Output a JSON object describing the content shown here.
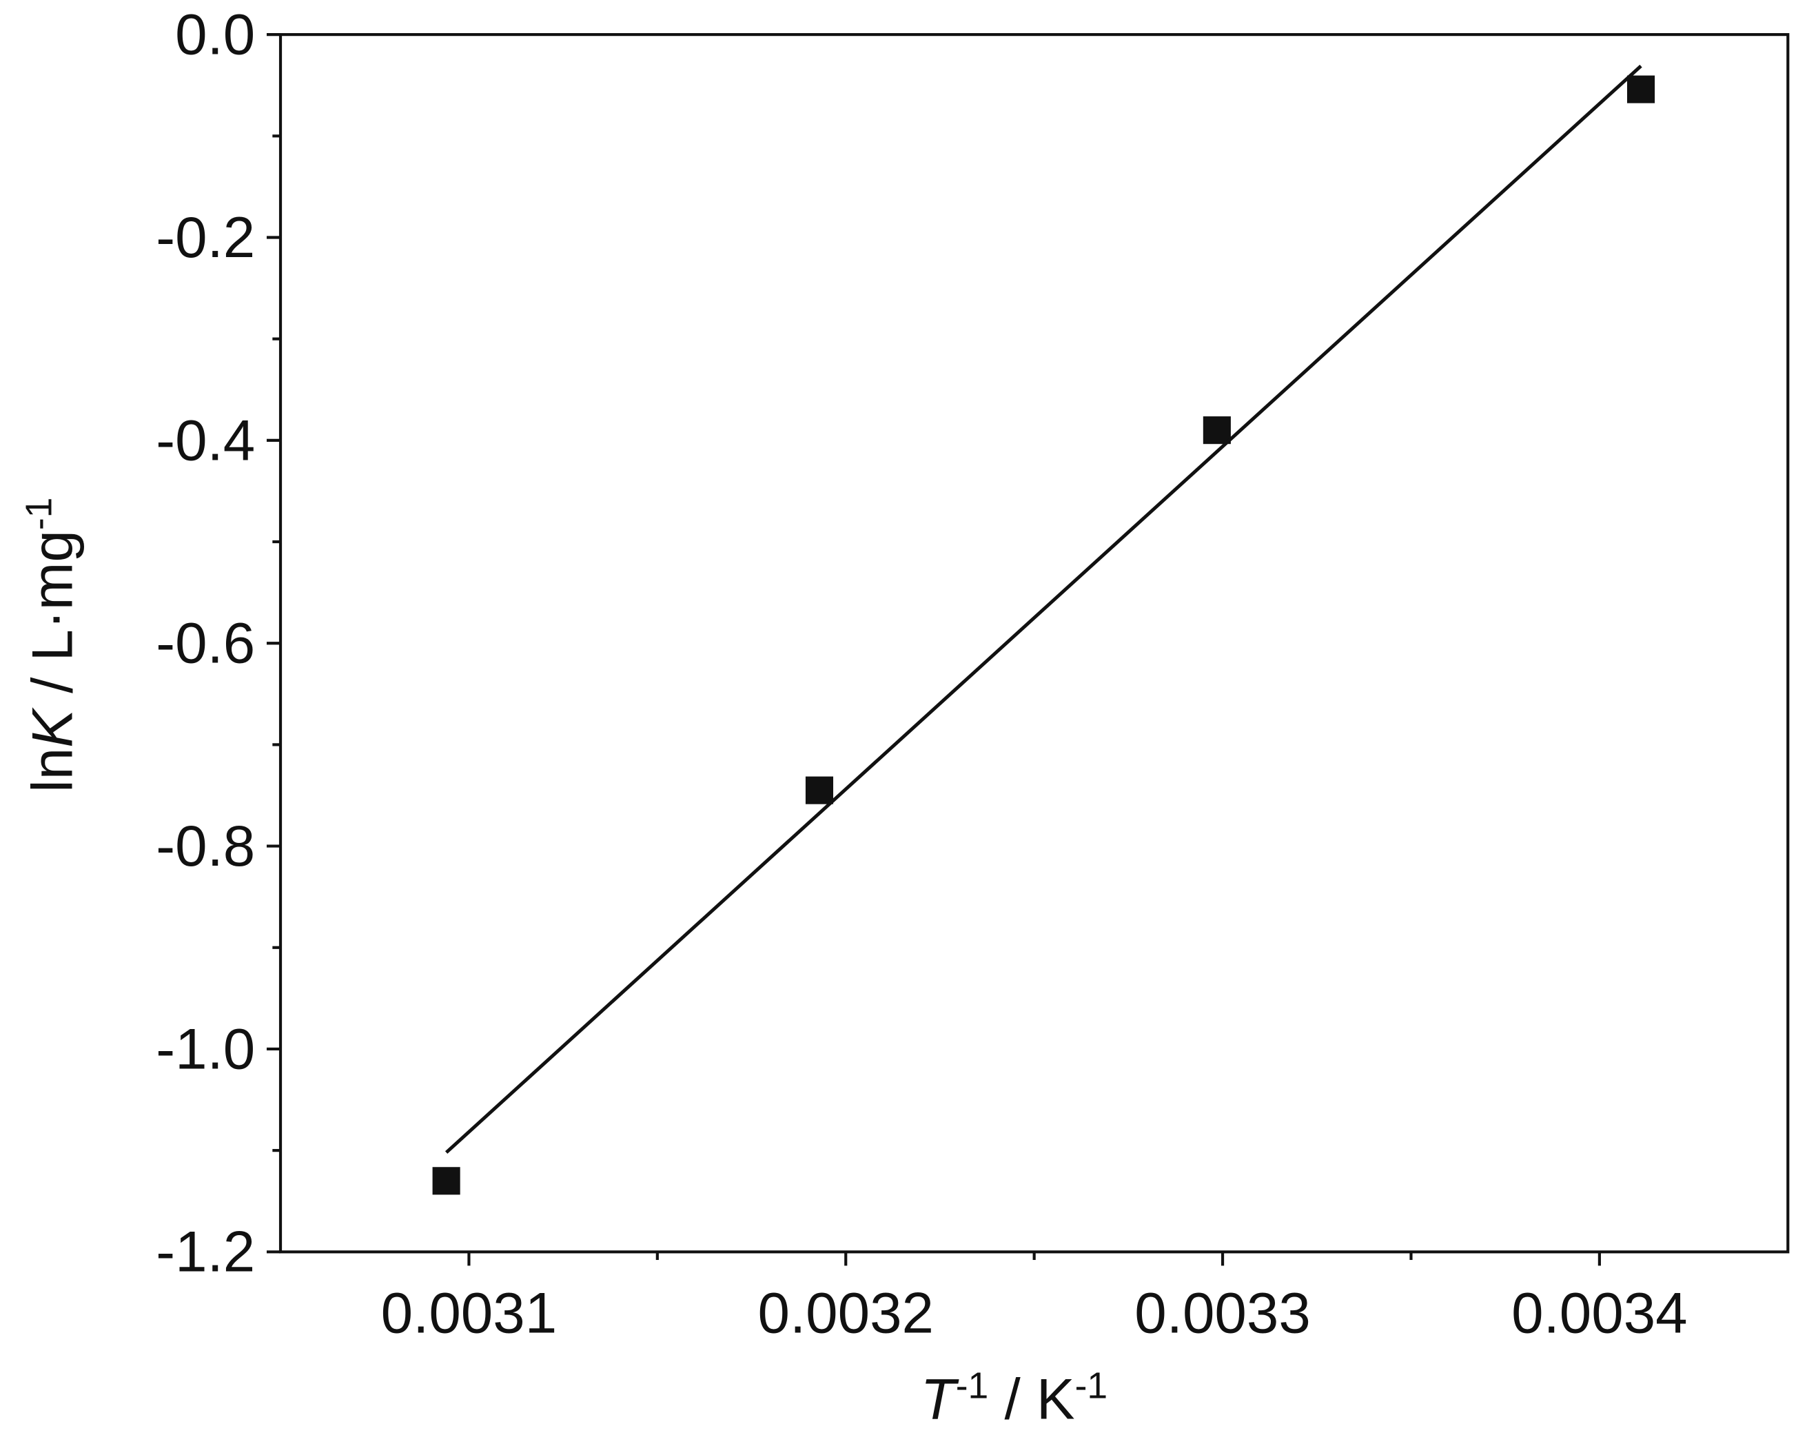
{
  "chart_data": {
    "type": "scatter",
    "xlabel": [
      "T",
      "-1",
      " / K",
      "-1"
    ],
    "ylabel": [
      "ln",
      "K",
      " / L·mg",
      "-1"
    ],
    "xlim": [
      0.00305,
      0.00345
    ],
    "ylim": [
      -1.2,
      0
    ],
    "xticks": [
      0.0031,
      0.0032,
      0.0033,
      0.0034
    ],
    "xminorticks": [
      0.00315,
      0.00325,
      0.00335
    ],
    "yticks": [
      {
        "value": 0,
        "label": "0.0"
      },
      -0.2,
      -0.4,
      -0.6,
      -0.8,
      {
        "value": -1,
        "label": "-1.0"
      },
      -1.2
    ],
    "yminorticks": [
      -0.1,
      -0.3,
      -0.5,
      -0.7,
      -0.9,
      -1.1
    ],
    "series": [
      {
        "marker": "square",
        "color": "#111111",
        "x": [
          0.003094,
          0.003193,
          0.0032985,
          0.003411
        ],
        "values": [
          -1.13,
          -0.745,
          -0.39,
          -0.054
        ]
      },
      {
        "marker": "line",
        "color": "#111111",
        "x": [
          0.003094,
          0.003411
        ],
        "values": [
          -1.102,
          -0.031
        ]
      }
    ]
  }
}
